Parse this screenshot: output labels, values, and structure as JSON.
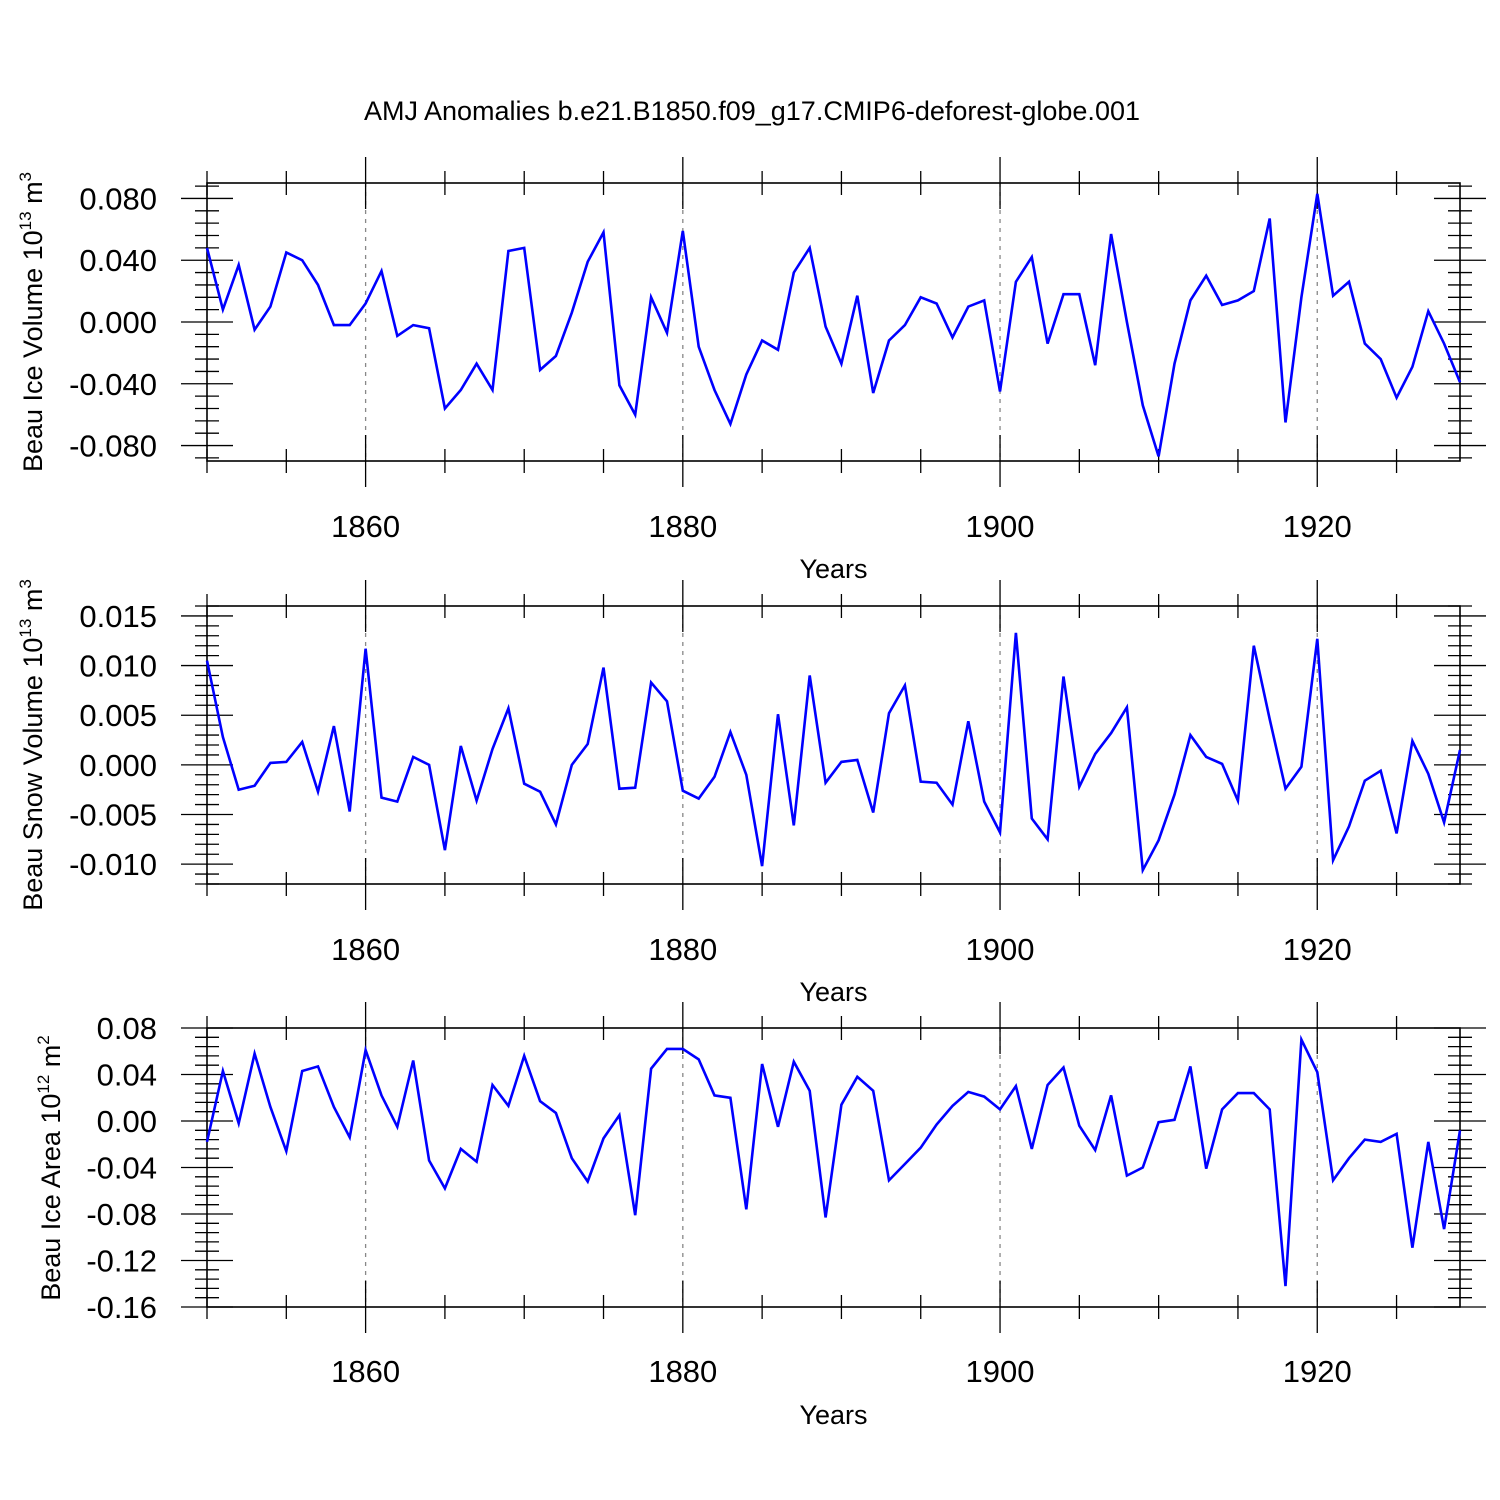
{
  "title": "AMJ Anomalies b.e21.B1850.f09_g17.CMIP6-deforest-globe.001",
  "chart_data": [
    {
      "type": "line",
      "ylabel": {
        "text": "Beau Ice Volume 10",
        "exp": "13",
        "unit": " m",
        "unit_exp": "3"
      },
      "xlabel": "Years",
      "xlim": [
        1850,
        1929
      ],
      "ylim": [
        -0.09,
        0.09
      ],
      "xticks": [
        1860,
        1880,
        1900,
        1920
      ],
      "xtick_labels": [
        "1860",
        "1880",
        "1900",
        "1920"
      ],
      "yticks": [
        0.08,
        0.04,
        0.0,
        -0.04,
        -0.08
      ],
      "ytick_labels": [
        "0.080",
        "0.040",
        "0.000",
        "-0.040",
        "-0.080"
      ],
      "dashed_verticals": [
        1860,
        1880,
        1900,
        1920
      ],
      "color": "#0000ff",
      "x_start": 1850,
      "values": [
        0.048,
        0.008,
        0.037,
        -0.005,
        0.01,
        0.045,
        0.04,
        0.024,
        -0.002,
        -0.002,
        0.012,
        0.033,
        -0.009,
        -0.002,
        -0.004,
        -0.056,
        -0.044,
        -0.027,
        -0.044,
        0.046,
        0.048,
        -0.031,
        -0.022,
        0.006,
        0.039,
        0.058,
        -0.041,
        -0.06,
        0.016,
        -0.007,
        0.059,
        -0.016,
        -0.044,
        -0.066,
        -0.034,
        -0.012,
        -0.018,
        0.032,
        0.048,
        -0.003,
        -0.027,
        0.017,
        -0.046,
        -0.012,
        -0.002,
        0.016,
        0.012,
        -0.01,
        0.01,
        0.014,
        -0.045,
        0.026,
        0.042,
        -0.014,
        0.018,
        0.018,
        -0.028,
        0.057,
        0.0,
        -0.054,
        -0.087,
        -0.027,
        0.014,
        0.03,
        0.011,
        0.014,
        0.02,
        0.067,
        -0.065,
        0.016,
        0.083,
        0.017,
        0.026,
        -0.014,
        -0.024,
        -0.049,
        -0.029,
        0.007,
        -0.014,
        -0.039
      ]
    },
    {
      "type": "line",
      "ylabel": {
        "text": "Beau Snow Volume 10",
        "exp": "13",
        "unit": " m",
        "unit_exp": "3"
      },
      "xlabel": "Years",
      "xlim": [
        1850,
        1929
      ],
      "ylim": [
        -0.012,
        0.016
      ],
      "xticks": [
        1860,
        1880,
        1900,
        1920
      ],
      "xtick_labels": [
        "1860",
        "1880",
        "1900",
        "1920"
      ],
      "yticks": [
        0.015,
        0.01,
        0.005,
        0.0,
        -0.005,
        -0.01
      ],
      "ytick_labels": [
        "0.015",
        "0.010",
        "0.005",
        "0.000",
        "-0.005",
        "-0.010"
      ],
      "dashed_verticals": [
        1860,
        1880,
        1900,
        1920
      ],
      "color": "#0000ff",
      "x_start": 1850,
      "values": [
        0.0105,
        0.0028,
        -0.0025,
        -0.0021,
        0.0002,
        0.0003,
        0.0023,
        -0.0027,
        0.0039,
        -0.0047,
        0.0117,
        -0.0033,
        -0.0037,
        0.0008,
        0.0,
        -0.0086,
        0.0019,
        -0.0036,
        0.0016,
        0.0057,
        -0.0019,
        -0.0027,
        -0.006,
        0.0,
        0.0021,
        0.0098,
        -0.0024,
        -0.0023,
        0.0083,
        0.0064,
        -0.0026,
        -0.0034,
        -0.0012,
        0.0033,
        -0.001,
        -0.0102,
        0.0051,
        -0.0061,
        0.009,
        -0.0018,
        0.0003,
        0.0005,
        -0.0048,
        0.0052,
        0.008,
        -0.0017,
        -0.0018,
        -0.004,
        0.0044,
        -0.0037,
        -0.0068,
        0.0133,
        -0.0054,
        -0.0075,
        0.0089,
        -0.0022,
        0.0011,
        0.0032,
        0.0058,
        -0.0106,
        -0.0076,
        -0.003,
        0.003,
        0.0008,
        0.0001,
        -0.0036,
        0.012,
        0.0046,
        -0.0024,
        -0.0002,
        0.0127,
        -0.0096,
        -0.0062,
        -0.0016,
        -0.0006,
        -0.0069,
        0.0024,
        -0.0009,
        -0.0058,
        0.0015
      ]
    },
    {
      "type": "line",
      "ylabel": {
        "text": "Beau Ice Area 10",
        "exp": "12",
        "unit": " m",
        "unit_exp": "2"
      },
      "xlabel": "Years",
      "xlim": [
        1850,
        1929
      ],
      "ylim": [
        -0.16,
        0.08
      ],
      "xticks": [
        1860,
        1880,
        1900,
        1920
      ],
      "xtick_labels": [
        "1860",
        "1880",
        "1900",
        "1920"
      ],
      "yticks": [
        0.08,
        0.04,
        0.0,
        -0.04,
        -0.08,
        -0.12,
        -0.16
      ],
      "ytick_labels": [
        "0.08",
        "0.04",
        "0.00",
        "-0.04",
        "-0.08",
        "-0.12",
        "-0.16"
      ],
      "dashed_verticals": [
        1860,
        1880,
        1900,
        1920
      ],
      "color": "#0000ff",
      "x_start": 1850,
      "values": [
        -0.018,
        0.043,
        -0.002,
        0.058,
        0.012,
        -0.026,
        0.043,
        0.047,
        0.012,
        -0.014,
        0.061,
        0.022,
        -0.005,
        0.052,
        -0.034,
        -0.058,
        -0.024,
        -0.035,
        0.031,
        0.013,
        0.056,
        0.017,
        0.007,
        -0.032,
        -0.052,
        -0.015,
        0.005,
        -0.081,
        0.045,
        0.062,
        0.062,
        0.053,
        0.022,
        0.02,
        -0.076,
        0.049,
        -0.005,
        0.051,
        0.026,
        -0.083,
        0.014,
        0.038,
        0.026,
        -0.051,
        -0.037,
        -0.023,
        -0.003,
        0.013,
        0.025,
        0.021,
        0.01,
        0.03,
        -0.024,
        0.031,
        0.046,
        -0.004,
        -0.025,
        0.022,
        -0.047,
        -0.04,
        -0.001,
        0.001,
        0.047,
        -0.041,
        0.01,
        0.024,
        0.024,
        0.01,
        -0.142,
        0.07,
        0.042,
        -0.051,
        -0.032,
        -0.016,
        -0.018,
        -0.011,
        -0.109,
        -0.018,
        -0.093,
        -0.008
      ]
    }
  ]
}
